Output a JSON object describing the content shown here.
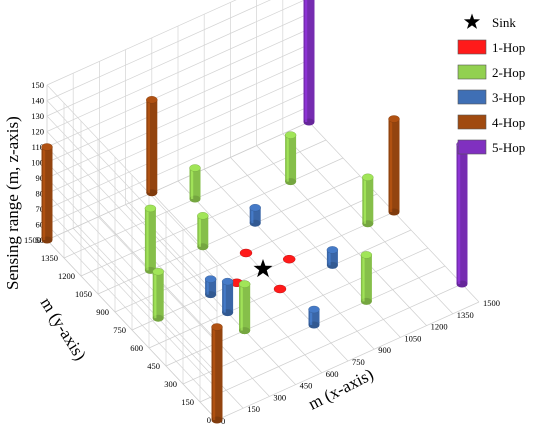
{
  "chart_data": {
    "type": "3d-bar",
    "zlabel": "Sensing range (m, z-axis)",
    "ylabel": "m (y-axis)",
    "xlabel": "m (x-axis)",
    "x_ticks": [
      "0",
      "150",
      "300",
      "450",
      "600",
      "750",
      "900",
      "1050",
      "1200",
      "1350",
      "1500"
    ],
    "y_ticks": [
      "0",
      "150",
      "300",
      "450",
      "600",
      "750",
      "900",
      "1050",
      "1200",
      "1350",
      "1500"
    ],
    "z_ticks": [
      "50",
      "60",
      "70",
      "80",
      "90",
      "100",
      "110",
      "120",
      "130",
      "140",
      "150"
    ],
    "legend": [
      {
        "label": "Sink",
        "marker": "star",
        "color": "#000000"
      },
      {
        "label": "1-Hop",
        "marker": "rect",
        "color": "#ff1a1a"
      },
      {
        "label": "2-Hop",
        "marker": "rect",
        "color": "#92d050"
      },
      {
        "label": "3-Hop",
        "marker": "rect",
        "color": "#3f6fb5"
      },
      {
        "label": "4-Hop",
        "marker": "rect",
        "color": "#a04a10"
      },
      {
        "label": "5-Hop",
        "marker": "rect",
        "color": "#8030c0"
      }
    ],
    "sink": {
      "x": 750,
      "y": 750
    },
    "series": [
      {
        "name": "1-Hop",
        "color": "#ff1a1a",
        "points": [
          {
            "x": 750,
            "y": 900,
            "z": 50
          },
          {
            "x": 900,
            "y": 750,
            "z": 50
          },
          {
            "x": 750,
            "y": 600,
            "z": 50
          },
          {
            "x": 600,
            "y": 750,
            "z": 50
          }
        ]
      },
      {
        "name": "2-Hop",
        "color": "#92d050",
        "points": [
          {
            "x": 750,
            "y": 1350,
            "z": 70
          },
          {
            "x": 1200,
            "y": 1200,
            "z": 80
          },
          {
            "x": 1350,
            "y": 750,
            "z": 80
          },
          {
            "x": 1050,
            "y": 300,
            "z": 80
          },
          {
            "x": 450,
            "y": 450,
            "z": 80
          },
          {
            "x": 150,
            "y": 750,
            "z": 80
          },
          {
            "x": 300,
            "y": 1050,
            "z": 90
          },
          {
            "x": 600,
            "y": 1050,
            "z": 70
          },
          {
            "x": 450,
            "y": 450,
            "z": 80
          }
        ]
      },
      {
        "name": "3-Hop",
        "color": "#3f6fb5",
        "points": [
          {
            "x": 900,
            "y": 1050,
            "z": 60
          },
          {
            "x": 1050,
            "y": 600,
            "z": 60
          },
          {
            "x": 750,
            "y": 300,
            "z": 60
          },
          {
            "x": 450,
            "y": 750,
            "z": 60
          },
          {
            "x": 450,
            "y": 600,
            "z": 70
          }
        ]
      },
      {
        "name": "4-Hop",
        "color": "#a04a10",
        "points": [
          {
            "x": 0,
            "y": 0,
            "z": 110
          },
          {
            "x": 1500,
            "y": 750,
            "z": 110
          },
          {
            "x": 600,
            "y": 1500,
            "z": 110
          },
          {
            "x": 0,
            "y": 1500,
            "z": 110
          }
        ]
      },
      {
        "name": "5-Hop",
        "color": "#8030c0",
        "points": [
          {
            "x": 1500,
            "y": 1500,
            "z": 150
          },
          {
            "x": 1500,
            "y": 150,
            "z": 140
          }
        ]
      }
    ]
  }
}
